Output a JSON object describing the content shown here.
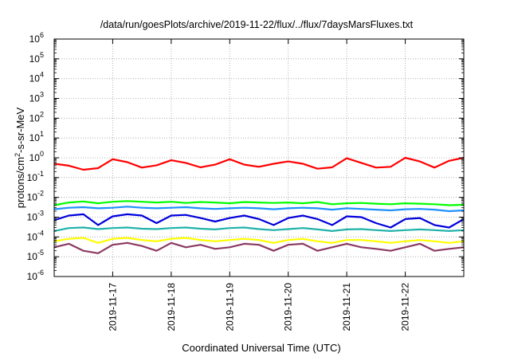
{
  "chart_data": {
    "type": "line",
    "title": "/data/run/goesPlots/archive/2019-11-22/flux/../flux/7daysMarsFluxes.txt",
    "xlabel": "Coordinated Universal Time (UTC)",
    "ylabel": "protons/cm²-s-sr-MeV",
    "yscale": "log",
    "ylim": [
      1e-06,
      1000000.0
    ],
    "xlim": [
      "2019-11-16 00:00",
      "2019-11-23 00:00"
    ],
    "grid": true,
    "legend": "none",
    "y_ticks": [
      {
        "base": "10",
        "exp": "-6"
      },
      {
        "base": "10",
        "exp": "-5"
      },
      {
        "base": "10",
        "exp": "-4"
      },
      {
        "base": "10",
        "exp": "-3"
      },
      {
        "base": "10",
        "exp": "-2"
      },
      {
        "base": "10",
        "exp": "-1"
      },
      {
        "base": "10",
        "exp": "0"
      },
      {
        "base": "10",
        "exp": "1"
      },
      {
        "base": "10",
        "exp": "2"
      },
      {
        "base": "10",
        "exp": "3"
      },
      {
        "base": "10",
        "exp": "4"
      },
      {
        "base": "10",
        "exp": "5"
      },
      {
        "base": "10",
        "exp": "6"
      }
    ],
    "x_ticks": [
      "2019-11-17",
      "2019-11-18",
      "2019-11-19",
      "2019-11-20",
      "2019-11-21",
      "2019-11-22"
    ],
    "series": [
      {
        "color": "#ff0000",
        "x": [
          "2019-11-16 00:00",
          "2019-11-16 06:00",
          "2019-11-16 12:00",
          "2019-11-16 18:00",
          "2019-11-17 00:00",
          "2019-11-17 06:00",
          "2019-11-17 12:00",
          "2019-11-17 18:00",
          "2019-11-18 00:00",
          "2019-11-18 06:00",
          "2019-11-18 12:00",
          "2019-11-18 18:00",
          "2019-11-19 00:00",
          "2019-11-19 06:00",
          "2019-11-19 12:00",
          "2019-11-19 18:00",
          "2019-11-20 00:00",
          "2019-11-20 06:00",
          "2019-11-20 12:00",
          "2019-11-20 18:00",
          "2019-11-21 00:00",
          "2019-11-21 06:00",
          "2019-11-21 12:00",
          "2019-11-21 18:00",
          "2019-11-22 00:00",
          "2019-11-22 06:00",
          "2019-11-22 12:00",
          "2019-11-22 18:00",
          "2019-11-23 00:00"
        ],
        "y": [
          0.5,
          0.4,
          0.25,
          0.3,
          0.85,
          0.6,
          0.32,
          0.42,
          0.75,
          0.55,
          0.33,
          0.45,
          0.85,
          0.45,
          0.35,
          0.5,
          0.65,
          0.5,
          0.28,
          0.33,
          0.95,
          0.55,
          0.32,
          0.35,
          1.0,
          0.65,
          0.32,
          0.7,
          1.0
        ]
      },
      {
        "color": "#00ff00",
        "x": [
          "2019-11-16 00:00",
          "2019-11-16 06:00",
          "2019-11-16 12:00",
          "2019-11-16 18:00",
          "2019-11-17 00:00",
          "2019-11-17 06:00",
          "2019-11-17 12:00",
          "2019-11-17 18:00",
          "2019-11-18 00:00",
          "2019-11-18 06:00",
          "2019-11-18 12:00",
          "2019-11-18 18:00",
          "2019-11-19 00:00",
          "2019-11-19 06:00",
          "2019-11-19 12:00",
          "2019-11-19 18:00",
          "2019-11-20 00:00",
          "2019-11-20 06:00",
          "2019-11-20 12:00",
          "2019-11-20 18:00",
          "2019-11-21 00:00",
          "2019-11-21 06:00",
          "2019-11-21 12:00",
          "2019-11-21 18:00",
          "2019-11-22 00:00",
          "2019-11-22 06:00",
          "2019-11-22 12:00",
          "2019-11-22 18:00",
          "2019-11-23 00:00"
        ],
        "y": [
          0.004,
          0.0055,
          0.0062,
          0.005,
          0.006,
          0.0065,
          0.006,
          0.0055,
          0.006,
          0.0052,
          0.0058,
          0.0055,
          0.005,
          0.0058,
          0.0055,
          0.0052,
          0.0055,
          0.005,
          0.0058,
          0.0045,
          0.005,
          0.0052,
          0.0048,
          0.0045,
          0.005,
          0.0048,
          0.0045,
          0.004,
          0.0042
        ]
      },
      {
        "color": "#1e90ff",
        "x": [
          "2019-11-16 00:00",
          "2019-11-16 06:00",
          "2019-11-16 12:00",
          "2019-11-16 18:00",
          "2019-11-17 00:00",
          "2019-11-17 06:00",
          "2019-11-17 12:00",
          "2019-11-17 18:00",
          "2019-11-18 00:00",
          "2019-11-18 06:00",
          "2019-11-18 12:00",
          "2019-11-18 18:00",
          "2019-11-19 00:00",
          "2019-11-19 06:00",
          "2019-11-19 12:00",
          "2019-11-19 18:00",
          "2019-11-20 00:00",
          "2019-11-20 06:00",
          "2019-11-20 12:00",
          "2019-11-20 18:00",
          "2019-11-21 00:00",
          "2019-11-21 06:00",
          "2019-11-21 12:00",
          "2019-11-21 18:00",
          "2019-11-22 00:00",
          "2019-11-22 06:00",
          "2019-11-22 12:00",
          "2019-11-22 18:00",
          "2019-11-23 00:00"
        ],
        "y": [
          0.0025,
          0.003,
          0.0032,
          0.0028,
          0.003,
          0.0034,
          0.003,
          0.0028,
          0.003,
          0.0032,
          0.0028,
          0.0026,
          0.0028,
          0.003,
          0.0028,
          0.0025,
          0.0028,
          0.003,
          0.0028,
          0.0024,
          0.0028,
          0.0026,
          0.0024,
          0.0022,
          0.0025,
          0.0026,
          0.0024,
          0.002,
          0.0022
        ]
      },
      {
        "color": "#0000dd",
        "x": [
          "2019-11-16 00:00",
          "2019-11-16 06:00",
          "2019-11-16 12:00",
          "2019-11-16 18:00",
          "2019-11-17 00:00",
          "2019-11-17 06:00",
          "2019-11-17 12:00",
          "2019-11-17 18:00",
          "2019-11-18 00:00",
          "2019-11-18 06:00",
          "2019-11-18 12:00",
          "2019-11-18 18:00",
          "2019-11-19 00:00",
          "2019-11-19 06:00",
          "2019-11-19 12:00",
          "2019-11-19 18:00",
          "2019-11-20 00:00",
          "2019-11-20 06:00",
          "2019-11-20 12:00",
          "2019-11-20 18:00",
          "2019-11-21 00:00",
          "2019-11-21 06:00",
          "2019-11-21 12:00",
          "2019-11-21 18:00",
          "2019-11-22 00:00",
          "2019-11-22 06:00",
          "2019-11-22 12:00",
          "2019-11-22 18:00",
          "2019-11-23 00:00"
        ],
        "y": [
          0.0007,
          0.0012,
          0.0014,
          0.0004,
          0.0011,
          0.0014,
          0.0012,
          0.0005,
          0.0012,
          0.0013,
          0.0009,
          0.0006,
          0.0009,
          0.0012,
          0.0008,
          0.0004,
          0.0009,
          0.0012,
          0.0008,
          0.0004,
          0.0011,
          0.001,
          0.0005,
          0.0003,
          0.0008,
          0.0009,
          0.0004,
          0.0003,
          0.0008
        ]
      },
      {
        "color": "#20b2aa",
        "x": [
          "2019-11-16 00:00",
          "2019-11-16 06:00",
          "2019-11-16 12:00",
          "2019-11-16 18:00",
          "2019-11-17 00:00",
          "2019-11-17 06:00",
          "2019-11-17 12:00",
          "2019-11-17 18:00",
          "2019-11-18 00:00",
          "2019-11-18 06:00",
          "2019-11-18 12:00",
          "2019-11-18 18:00",
          "2019-11-19 00:00",
          "2019-11-19 06:00",
          "2019-11-19 12:00",
          "2019-11-19 18:00",
          "2019-11-20 00:00",
          "2019-11-20 06:00",
          "2019-11-20 12:00",
          "2019-11-20 18:00",
          "2019-11-21 00:00",
          "2019-11-21 06:00",
          "2019-11-21 12:00",
          "2019-11-21 18:00",
          "2019-11-22 00:00",
          "2019-11-22 06:00",
          "2019-11-22 12:00",
          "2019-11-22 18:00",
          "2019-11-23 00:00"
        ],
        "y": [
          0.0002,
          0.00028,
          0.0003,
          0.00025,
          0.00028,
          0.0003,
          0.00026,
          0.00025,
          0.00028,
          0.0003,
          0.00026,
          0.00024,
          0.00028,
          0.0003,
          0.00025,
          0.00022,
          0.00025,
          0.00028,
          0.00024,
          0.0002,
          0.00024,
          0.00025,
          0.00022,
          0.0002,
          0.00022,
          0.00024,
          0.00022,
          0.0002,
          0.00022
        ]
      },
      {
        "color": "#ffff00",
        "x": [
          "2019-11-16 00:00",
          "2019-11-16 06:00",
          "2019-11-16 12:00",
          "2019-11-16 18:00",
          "2019-11-17 00:00",
          "2019-11-17 06:00",
          "2019-11-17 12:00",
          "2019-11-17 18:00",
          "2019-11-18 00:00",
          "2019-11-18 06:00",
          "2019-11-18 12:00",
          "2019-11-18 18:00",
          "2019-11-19 00:00",
          "2019-11-19 06:00",
          "2019-11-19 12:00",
          "2019-11-19 18:00",
          "2019-11-20 00:00",
          "2019-11-20 06:00",
          "2019-11-20 12:00",
          "2019-11-20 18:00",
          "2019-11-21 00:00",
          "2019-11-21 06:00",
          "2019-11-21 12:00",
          "2019-11-21 18:00",
          "2019-11-22 00:00",
          "2019-11-22 06:00",
          "2019-11-22 12:00",
          "2019-11-22 18:00",
          "2019-11-23 00:00"
        ],
        "y": [
          6e-05,
          8e-05,
          9e-05,
          5e-05,
          8e-05,
          9e-05,
          7e-05,
          6e-05,
          8e-05,
          9e-05,
          7e-05,
          6e-05,
          7e-05,
          8e-05,
          7e-05,
          5e-05,
          7e-05,
          8e-05,
          6e-05,
          5e-05,
          7e-05,
          7e-05,
          6e-05,
          5e-05,
          6e-05,
          7e-05,
          6e-05,
          5e-05,
          6e-05
        ]
      },
      {
        "color": "#8b3a62",
        "x": [
          "2019-11-16 00:00",
          "2019-11-16 06:00",
          "2019-11-16 12:00",
          "2019-11-16 18:00",
          "2019-11-17 00:00",
          "2019-11-17 06:00",
          "2019-11-17 12:00",
          "2019-11-17 18:00",
          "2019-11-18 00:00",
          "2019-11-18 06:00",
          "2019-11-18 12:00",
          "2019-11-18 18:00",
          "2019-11-19 00:00",
          "2019-11-19 06:00",
          "2019-11-19 12:00",
          "2019-11-19 18:00",
          "2019-11-20 00:00",
          "2019-11-20 06:00",
          "2019-11-20 12:00",
          "2019-11-20 18:00",
          "2019-11-21 00:00",
          "2019-11-21 06:00",
          "2019-11-21 12:00",
          "2019-11-21 18:00",
          "2019-11-22 00:00",
          "2019-11-22 06:00",
          "2019-11-22 12:00",
          "2019-11-22 18:00",
          "2019-11-23 00:00"
        ],
        "y": [
          3e-05,
          4.5e-05,
          2e-05,
          1.5e-05,
          4e-05,
          5e-05,
          3.5e-05,
          2e-05,
          5e-05,
          3e-05,
          4e-05,
          2.5e-05,
          3e-05,
          4.5e-05,
          4e-05,
          2e-05,
          4e-05,
          4.5e-05,
          2e-05,
          3e-05,
          4.5e-05,
          3e-05,
          2.5e-05,
          2e-05,
          3e-05,
          4.5e-05,
          2e-05,
          2.5e-05,
          3e-05
        ]
      }
    ]
  }
}
